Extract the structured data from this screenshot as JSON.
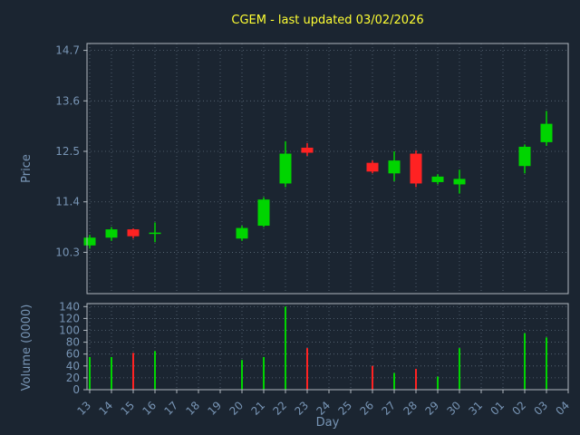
{
  "chart_data": {
    "type": "candlestick",
    "title": "CGEM - last updated 03/02/2026",
    "xlabel": "Day",
    "price_axis": {
      "label": "Price",
      "ticks": [
        10.3,
        11.4,
        12.5,
        13.6,
        14.7
      ],
      "ylim": [
        9.4,
        14.85
      ]
    },
    "volume_axis": {
      "label": "Volume (0000)",
      "ticks": [
        0,
        20,
        40,
        60,
        80,
        100,
        120,
        140
      ],
      "ylim": [
        0,
        145
      ]
    },
    "categories": [
      "13",
      "14",
      "15",
      "16",
      "17",
      "18",
      "19",
      "20",
      "21",
      "22",
      "23",
      "24",
      "25",
      "26",
      "27",
      "28",
      "29",
      "30",
      "31",
      "01",
      "02",
      "03",
      "04"
    ],
    "candles": [
      {
        "day": "13",
        "open": 10.45,
        "high": 10.68,
        "low": 10.38,
        "close": 10.62,
        "volume": 55
      },
      {
        "day": "14",
        "open": 10.62,
        "high": 10.85,
        "low": 10.55,
        "close": 10.8,
        "volume": 55
      },
      {
        "day": "15",
        "open": 10.8,
        "high": 10.82,
        "low": 10.6,
        "close": 10.65,
        "volume": 62
      },
      {
        "day": "16",
        "open": 10.7,
        "high": 10.95,
        "low": 10.52,
        "close": 10.73,
        "volume": 65
      },
      {
        "day": "20",
        "open": 10.6,
        "high": 10.88,
        "low": 10.55,
        "close": 10.83,
        "volume": 50
      },
      {
        "day": "21",
        "open": 10.88,
        "high": 11.5,
        "low": 10.85,
        "close": 11.45,
        "volume": 55
      },
      {
        "day": "22",
        "open": 11.8,
        "high": 12.72,
        "low": 11.72,
        "close": 12.45,
        "volume": 140
      },
      {
        "day": "23",
        "open": 12.58,
        "high": 12.68,
        "low": 12.4,
        "close": 12.47,
        "volume": 70
      },
      {
        "day": "26",
        "open": 12.25,
        "high": 12.3,
        "low": 12.02,
        "close": 12.06,
        "volume": 40
      },
      {
        "day": "27",
        "open": 12.02,
        "high": 12.5,
        "low": 11.85,
        "close": 12.3,
        "volume": 28
      },
      {
        "day": "28",
        "open": 12.45,
        "high": 12.52,
        "low": 11.72,
        "close": 11.8,
        "volume": 35
      },
      {
        "day": "29",
        "open": 11.83,
        "high": 12.0,
        "low": 11.78,
        "close": 11.95,
        "volume": 22
      },
      {
        "day": "30",
        "open": 11.78,
        "high": 12.1,
        "low": 11.58,
        "close": 11.9,
        "volume": 70
      },
      {
        "day": "02",
        "open": 12.18,
        "high": 12.65,
        "low": 12.02,
        "close": 12.6,
        "volume": 95
      },
      {
        "day": "03",
        "open": 12.7,
        "high": 13.38,
        "low": 12.62,
        "close": 13.1,
        "volume": 88
      }
    ],
    "colors": {
      "background": "#1b2531",
      "up": "#00d500",
      "down": "#ff2222",
      "title": "#ffff33",
      "tick": "#7895b5",
      "grid": "#5c6b7a",
      "spine": "#b0b8bf"
    },
    "legend": "off",
    "grid": "dotted"
  }
}
